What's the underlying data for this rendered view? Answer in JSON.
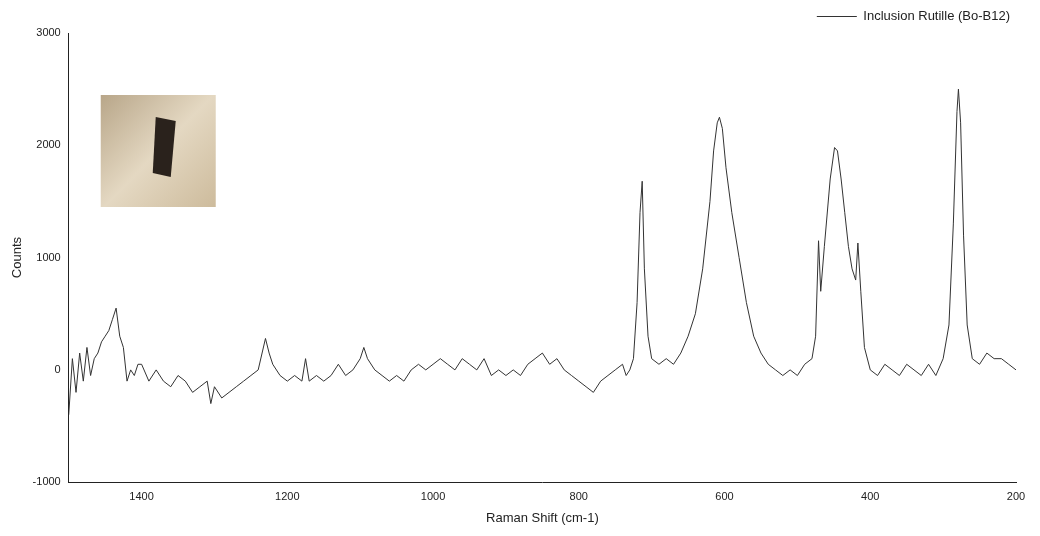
{
  "chart_data": {
    "type": "line",
    "x_label": "Raman Shift (cm-1)",
    "y_label": "Counts",
    "x": [
      1500,
      1495,
      1490,
      1485,
      1480,
      1475,
      1470,
      1465,
      1460,
      1455,
      1450,
      1445,
      1440,
      1435,
      1430,
      1425,
      1420,
      1415,
      1410,
      1405,
      1400,
      1390,
      1380,
      1370,
      1360,
      1350,
      1340,
      1330,
      1320,
      1310,
      1305,
      1300,
      1290,
      1280,
      1270,
      1260,
      1250,
      1240,
      1230,
      1225,
      1220,
      1210,
      1200,
      1190,
      1180,
      1175,
      1170,
      1160,
      1150,
      1140,
      1130,
      1120,
      1110,
      1100,
      1095,
      1090,
      1080,
      1070,
      1060,
      1050,
      1040,
      1030,
      1020,
      1010,
      1000,
      990,
      980,
      970,
      960,
      950,
      940,
      930,
      920,
      910,
      900,
      890,
      880,
      870,
      860,
      850,
      840,
      830,
      820,
      810,
      800,
      790,
      780,
      770,
      760,
      750,
      740,
      735,
      730,
      725,
      720,
      716,
      713,
      710,
      705,
      700,
      690,
      680,
      670,
      660,
      650,
      640,
      630,
      620,
      615,
      610,
      607,
      603,
      598,
      590,
      580,
      570,
      560,
      550,
      540,
      530,
      520,
      510,
      500,
      490,
      480,
      475,
      471,
      468,
      463,
      455,
      449,
      445,
      440,
      435,
      430,
      425,
      420,
      417,
      413,
      408,
      400,
      390,
      380,
      370,
      360,
      350,
      340,
      330,
      320,
      310,
      300,
      292,
      286,
      281,
      279,
      276,
      272,
      267,
      260,
      250,
      240,
      230,
      220,
      210,
      200
    ],
    "series": [
      {
        "name": "Inclusion Rutille (Bo-B12)",
        "color": "#333333",
        "values": [
          -400,
          100,
          -200,
          150,
          -100,
          200,
          -50,
          100,
          150,
          250,
          300,
          350,
          450,
          550,
          300,
          200,
          -100,
          0,
          -50,
          50,
          50,
          -100,
          0,
          -100,
          -150,
          -50,
          -100,
          -200,
          -150,
          -100,
          -300,
          -150,
          -250,
          -200,
          -150,
          -100,
          -50,
          0,
          280,
          150,
          50,
          -50,
          -100,
          -50,
          -100,
          100,
          -100,
          -50,
          -100,
          -50,
          50,
          -50,
          0,
          100,
          200,
          100,
          0,
          -50,
          -100,
          -50,
          -100,
          0,
          50,
          0,
          50,
          100,
          50,
          0,
          100,
          50,
          0,
          100,
          -50,
          0,
          -50,
          0,
          -50,
          50,
          100,
          150,
          50,
          100,
          0,
          -50,
          -100,
          -150,
          -200,
          -100,
          -50,
          0,
          50,
          -50,
          0,
          100,
          600,
          1400,
          1680,
          900,
          300,
          100,
          50,
          100,
          50,
          150,
          300,
          500,
          900,
          1500,
          1950,
          2200,
          2250,
          2150,
          1800,
          1400,
          1000,
          600,
          300,
          150,
          50,
          0,
          -50,
          0,
          -50,
          50,
          100,
          300,
          1150,
          700,
          1100,
          1700,
          1980,
          1950,
          1700,
          1400,
          1100,
          900,
          800,
          1130,
          700,
          200,
          0,
          -50,
          50,
          0,
          -50,
          50,
          0,
          -50,
          50,
          -50,
          100,
          400,
          1300,
          2300,
          2500,
          2200,
          1200,
          400,
          100,
          50,
          150,
          100,
          100,
          50,
          0
        ]
      }
    ],
    "xlim": [
      1500,
      200
    ],
    "ylim": [
      -1000,
      3000
    ],
    "xticks": [
      1400,
      1200,
      1000,
      800,
      600,
      400,
      200
    ],
    "yticks": [
      -1000,
      0,
      1000,
      2000,
      3000
    ],
    "grid": false,
    "legend": "top-right"
  }
}
